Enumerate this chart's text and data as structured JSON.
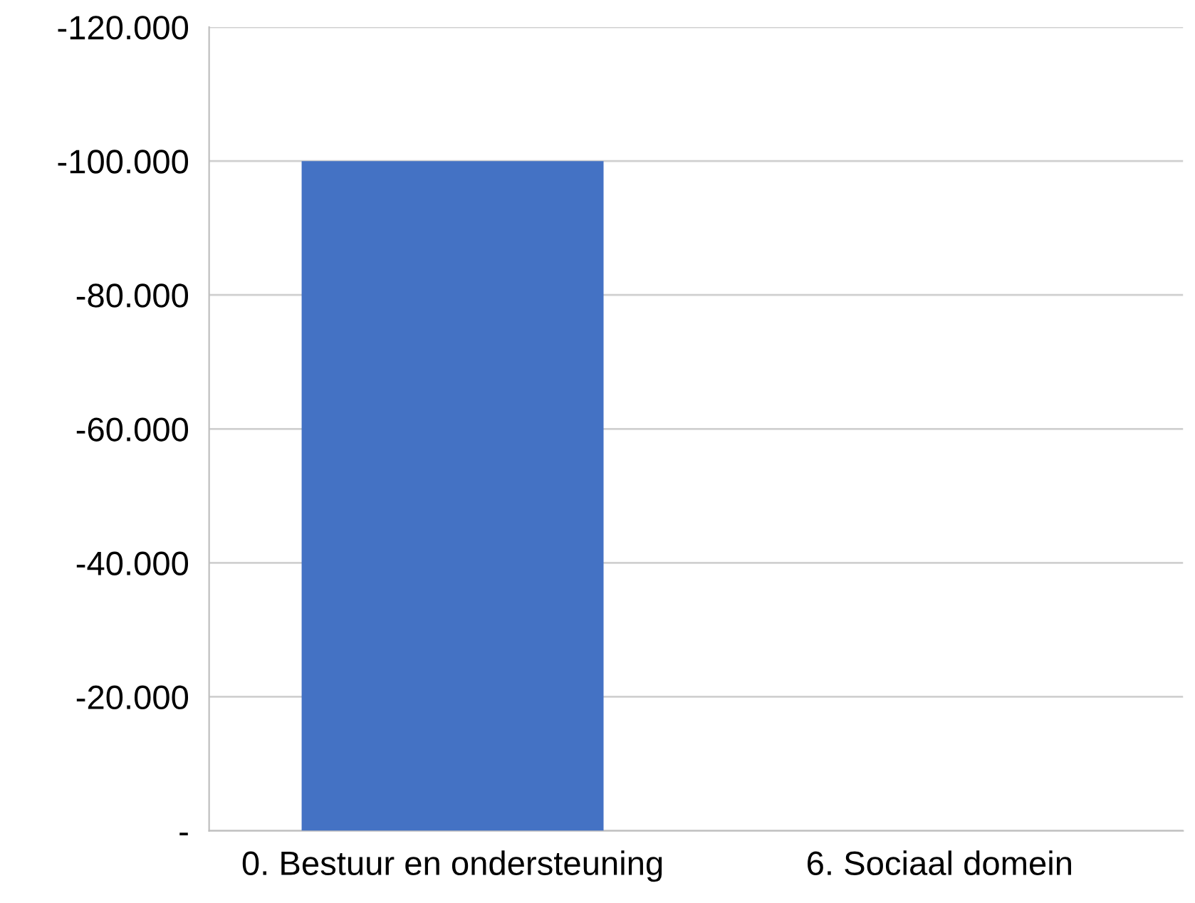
{
  "chart_data": {
    "type": "bar",
    "categories": [
      "0. Bestuur en ondersteuning",
      "6. Sociaal domein"
    ],
    "values": [
      -100000,
      0
    ],
    "color": "#4472c4",
    "ylim": [
      0,
      -120000
    ],
    "yticks": [
      {
        "value": 0,
        "label": "-"
      },
      {
        "value": -20000,
        "label": "-20.000"
      },
      {
        "value": -40000,
        "label": "-40.000"
      },
      {
        "value": -60000,
        "label": "-60.000"
      },
      {
        "value": -80000,
        "label": "-80.000"
      },
      {
        "value": -100000,
        "label": "-100.000"
      },
      {
        "value": -120000,
        "label": "-120.000"
      }
    ],
    "grid": "y"
  }
}
